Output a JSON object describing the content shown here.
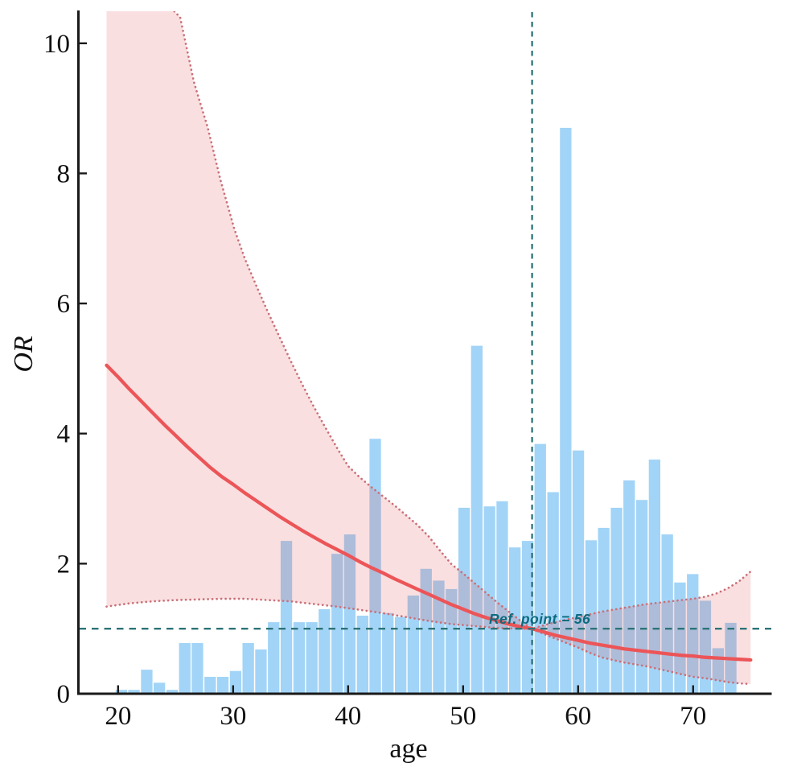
{
  "chart_data": {
    "type": "bar+line",
    "xlabel": "age",
    "ylabel": "OR",
    "xlim": [
      16.55,
      76.8
    ],
    "ylim": [
      0,
      10.48
    ],
    "x_ticks": [
      20,
      30,
      40,
      50,
      60,
      70
    ],
    "y_ticks": [
      0,
      2,
      4,
      6,
      8,
      10
    ],
    "grid": "off",
    "legend": "none",
    "ref_point": {
      "age": 56,
      "or": 1,
      "label": "Ref. point = 56"
    },
    "histogram": {
      "bin_width_years": 1.104,
      "centers": [
        20.28,
        21.38,
        22.49,
        23.59,
        24.7,
        25.8,
        26.9,
        28.01,
        29.11,
        30.22,
        31.32,
        32.42,
        33.53,
        34.63,
        35.74,
        36.84,
        37.94,
        39.05,
        40.15,
        41.26,
        42.36,
        43.46,
        44.57,
        45.67,
        46.78,
        47.88,
        48.98,
        50.09,
        51.19,
        52.3,
        53.4,
        54.5,
        55.61,
        56.71,
        57.82,
        58.92,
        60.02,
        61.13,
        62.23,
        63.34,
        64.44,
        65.54,
        66.65,
        67.75,
        68.86,
        69.96,
        71.06,
        72.17,
        73.27
      ],
      "heights": [
        0.06,
        0.06,
        0.37,
        0.17,
        0.06,
        0.78,
        0.78,
        0.26,
        0.26,
        0.35,
        0.78,
        0.68,
        1.1,
        2.35,
        1.1,
        1.1,
        1.3,
        2.15,
        2.45,
        1.2,
        3.92,
        1.24,
        1.18,
        1.51,
        1.92,
        1.74,
        1.61,
        2.86,
        5.35,
        2.88,
        2.96,
        2.25,
        2.35,
        3.84,
        3.1,
        8.7,
        3.74,
        2.36,
        2.55,
        2.86,
        3.28,
        2.98,
        3.6,
        2.45,
        1.71,
        1.84,
        1.43,
        0.7,
        1.09
      ]
    },
    "series": [
      {
        "name": "or_spline",
        "points": [
          [
            19,
            5.05
          ],
          [
            20,
            4.87
          ],
          [
            21,
            4.68
          ],
          [
            22,
            4.5
          ],
          [
            23,
            4.32
          ],
          [
            24,
            4.14
          ],
          [
            25,
            3.97
          ],
          [
            26,
            3.8
          ],
          [
            27,
            3.64
          ],
          [
            28,
            3.48
          ],
          [
            29,
            3.34
          ],
          [
            30,
            3.22
          ],
          [
            31,
            3.09
          ],
          [
            32,
            2.97
          ],
          [
            33,
            2.85
          ],
          [
            34,
            2.73
          ],
          [
            35,
            2.62
          ],
          [
            36,
            2.51
          ],
          [
            37,
            2.41
          ],
          [
            38,
            2.31
          ],
          [
            39,
            2.22
          ],
          [
            40,
            2.13
          ],
          [
            41,
            2.03
          ],
          [
            42,
            1.94
          ],
          [
            43,
            1.86
          ],
          [
            44,
            1.77
          ],
          [
            45,
            1.69
          ],
          [
            46,
            1.61
          ],
          [
            47,
            1.53
          ],
          [
            48,
            1.45
          ],
          [
            49,
            1.37
          ],
          [
            50,
            1.3
          ],
          [
            51,
            1.23
          ],
          [
            52,
            1.17
          ],
          [
            53,
            1.12
          ],
          [
            54,
            1.07
          ],
          [
            55,
            1.03
          ],
          [
            56,
            1.0
          ],
          [
            57,
            0.95
          ],
          [
            58,
            0.9
          ],
          [
            59,
            0.86
          ],
          [
            60,
            0.82
          ],
          [
            61,
            0.78
          ],
          [
            62,
            0.75
          ],
          [
            63,
            0.72
          ],
          [
            64,
            0.69
          ],
          [
            65,
            0.67
          ],
          [
            66,
            0.65
          ],
          [
            67,
            0.63
          ],
          [
            68,
            0.61
          ],
          [
            69,
            0.59
          ],
          [
            70,
            0.58
          ],
          [
            71,
            0.56
          ],
          [
            72,
            0.55
          ],
          [
            73,
            0.54
          ],
          [
            74,
            0.53
          ],
          [
            75,
            0.52
          ]
        ]
      },
      {
        "name": "ci_upper",
        "points": [
          [
            19,
            10.6
          ],
          [
            24.3,
            10.6
          ],
          [
            25.4,
            10.4
          ],
          [
            26.6,
            9.4
          ],
          [
            27.8,
            8.7
          ],
          [
            28.9,
            7.9
          ],
          [
            30.1,
            7.15
          ],
          [
            31,
            6.7
          ],
          [
            32,
            6.28
          ],
          [
            33,
            5.88
          ],
          [
            34,
            5.5
          ],
          [
            35,
            5.12
          ],
          [
            36,
            4.76
          ],
          [
            37,
            4.42
          ],
          [
            38,
            4.1
          ],
          [
            39,
            3.79
          ],
          [
            40,
            3.5
          ],
          [
            41,
            3.33
          ],
          [
            42,
            3.18
          ],
          [
            43,
            3.04
          ],
          [
            44,
            2.9
          ],
          [
            45,
            2.75
          ],
          [
            46,
            2.6
          ],
          [
            47,
            2.42
          ],
          [
            48,
            2.2
          ],
          [
            49,
            1.99
          ],
          [
            50,
            1.85
          ],
          [
            51,
            1.7
          ],
          [
            52,
            1.55
          ],
          [
            53,
            1.4
          ],
          [
            54,
            1.26
          ],
          [
            55,
            1.12
          ],
          [
            56,
            1.0
          ],
          [
            57,
            1.05
          ],
          [
            58,
            1.1
          ],
          [
            59,
            1.14
          ],
          [
            60,
            1.18
          ],
          [
            61,
            1.22
          ],
          [
            62,
            1.26
          ],
          [
            63,
            1.29
          ],
          [
            64,
            1.32
          ],
          [
            65,
            1.35
          ],
          [
            66,
            1.38
          ],
          [
            67,
            1.4
          ],
          [
            68,
            1.42
          ],
          [
            69,
            1.44
          ],
          [
            70,
            1.46
          ],
          [
            71,
            1.49
          ],
          [
            72,
            1.54
          ],
          [
            73,
            1.62
          ],
          [
            74,
            1.73
          ],
          [
            75,
            1.88
          ]
        ]
      },
      {
        "name": "ci_lower",
        "points": [
          [
            19,
            1.34
          ],
          [
            21,
            1.39
          ],
          [
            23,
            1.42
          ],
          [
            25,
            1.44
          ],
          [
            27,
            1.45
          ],
          [
            29,
            1.46
          ],
          [
            31,
            1.46
          ],
          [
            33,
            1.44
          ],
          [
            35,
            1.42
          ],
          [
            37,
            1.38
          ],
          [
            39,
            1.34
          ],
          [
            41,
            1.29
          ],
          [
            43,
            1.24
          ],
          [
            45,
            1.18
          ],
          [
            47,
            1.12
          ],
          [
            49,
            1.07
          ],
          [
            51,
            1.04
          ],
          [
            53,
            1.01
          ],
          [
            55,
            1.0
          ],
          [
            56,
            1.0
          ],
          [
            57,
            0.92
          ],
          [
            58,
            0.85
          ],
          [
            59,
            0.78
          ],
          [
            60,
            0.71
          ],
          [
            61,
            0.63
          ],
          [
            62,
            0.56
          ],
          [
            63,
            0.52
          ],
          [
            64,
            0.48
          ],
          [
            65,
            0.45
          ],
          [
            66,
            0.42
          ],
          [
            67,
            0.38
          ],
          [
            68,
            0.34
          ],
          [
            69,
            0.3
          ],
          [
            70,
            0.26
          ],
          [
            71,
            0.24
          ],
          [
            72,
            0.21
          ],
          [
            73,
            0.18
          ],
          [
            74,
            0.16
          ],
          [
            75,
            0.15
          ]
        ]
      }
    ],
    "colors": {
      "bar": "#a2d4f7",
      "band_fill": "rgba(222,82,86,0.185)",
      "curve": "#ec5558",
      "ci_dots": "#cb7078",
      "ref_lines": "#2d7377",
      "ref_text": "#0b6b7e",
      "axis": "#1a1a1a"
    }
  }
}
